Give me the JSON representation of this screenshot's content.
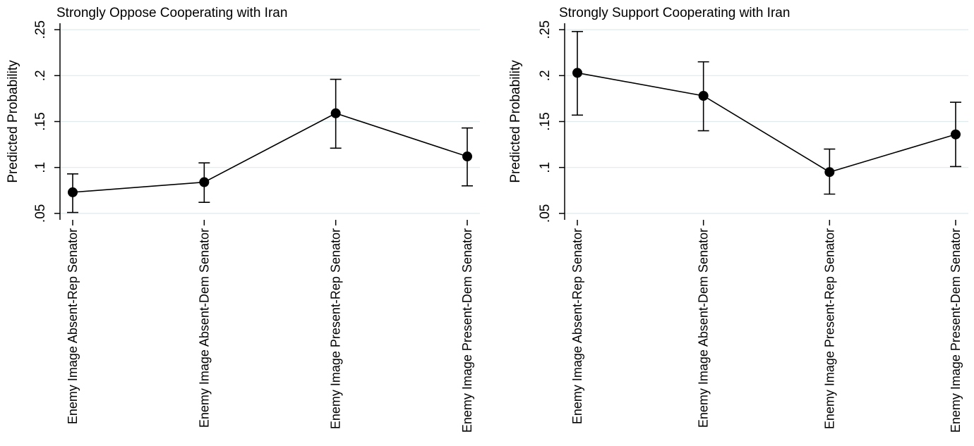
{
  "chart_data": [
    {
      "type": "line",
      "title": "Strongly Oppose Cooperating with Iran",
      "y_label": "Predicted Probability",
      "categories": [
        "Enemy Image Absent-Rep Senator",
        "Enemy Image Absent-Dem Senator",
        "Enemy Image Present-Rep Senator",
        "Enemy Image Present-Dem Senator"
      ],
      "values": [
        0.073,
        0.084,
        0.159,
        0.112
      ],
      "lower": [
        0.051,
        0.062,
        0.121,
        0.08
      ],
      "upper": [
        0.093,
        0.105,
        0.196,
        0.143
      ],
      "color": "#000000",
      "grid": true,
      "ylim": [
        0.043,
        0.257
      ],
      "yticks": [
        {
          "value": 0.05,
          "label": ".05"
        },
        {
          "value": 0.1,
          "label": ".1"
        },
        {
          "value": 0.15,
          "label": ".15"
        },
        {
          "value": 0.2,
          "label": ".2"
        },
        {
          "value": 0.25,
          "label": ".25"
        }
      ]
    },
    {
      "type": "line",
      "title": "Strongly Support Cooperating with Iran",
      "y_label": "Predicted Probability",
      "categories": [
        "Enemy Image Absent-Rep Senator",
        "Enemy Image Absent-Dem Senator",
        "Enemy Image Present-Rep Senator",
        "Enemy Image Present-Dem Senator"
      ],
      "values": [
        0.203,
        0.178,
        0.095,
        0.136
      ],
      "lower": [
        0.157,
        0.14,
        0.071,
        0.101
      ],
      "upper": [
        0.248,
        0.215,
        0.12,
        0.171
      ],
      "color": "#000000",
      "grid": true,
      "ylim": [
        0.043,
        0.257
      ],
      "yticks": [
        {
          "value": 0.05,
          "label": ".05"
        },
        {
          "value": 0.1,
          "label": ".1"
        },
        {
          "value": 0.15,
          "label": ".15"
        },
        {
          "value": 0.2,
          "label": ".2"
        },
        {
          "value": 0.25,
          "label": ".25"
        }
      ]
    }
  ]
}
